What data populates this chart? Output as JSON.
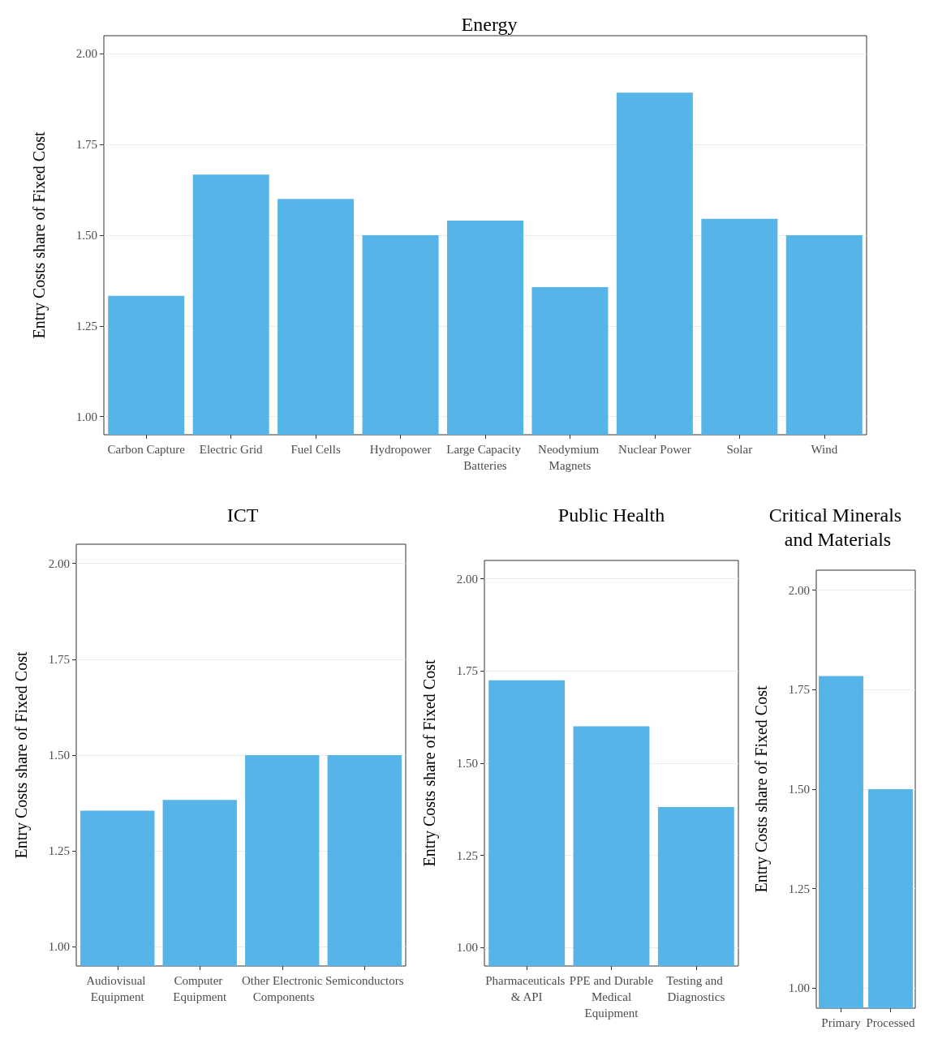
{
  "chart_data": [
    {
      "type": "bar",
      "title": "Energy",
      "ylabel": "Entry Costs share of Fixed Cost",
      "categories": [
        "Carbon Capture",
        "Electric Grid",
        "Fuel Cells",
        "Hydropower",
        "Large Capacity Batteries",
        "Neodymium Magnets",
        "Nuclear Power",
        "Solar",
        "Wind"
      ],
      "values": [
        1.333,
        1.667,
        1.6,
        1.5,
        1.54,
        1.357,
        1.893,
        1.545,
        1.5
      ],
      "color": "#56b4e9",
      "ylim": [
        0.95,
        2.05
      ],
      "yticks": [
        {
          "value": 1,
          "label": "1.00"
        },
        {
          "value": 1.25,
          "label": "1.25"
        },
        {
          "value": 1.5,
          "label": "1.50"
        },
        {
          "value": 1.75,
          "label": "1.75"
        },
        {
          "value": 2,
          "label": "2.00"
        }
      ],
      "grid": "y"
    },
    {
      "type": "bar",
      "title": "ICT",
      "ylabel": "Entry Costs share of Fixed Cost",
      "categories": [
        "Audiovisual Equipment",
        "Computer Equipment",
        "Other Electronic Components",
        "Semiconductors"
      ],
      "values": [
        1.355,
        1.383,
        1.5,
        1.5
      ],
      "color": "#56b4e9",
      "ylim": [
        0.95,
        2.05
      ],
      "yticks": [
        {
          "value": 1,
          "label": "1.00"
        },
        {
          "value": 1.25,
          "label": "1.25"
        },
        {
          "value": 1.5,
          "label": "1.50"
        },
        {
          "value": 1.75,
          "label": "1.75"
        },
        {
          "value": 2,
          "label": "2.00"
        }
      ],
      "grid": "y"
    },
    {
      "type": "bar",
      "title": "Public Health",
      "ylabel": "Entry Costs share of Fixed Cost",
      "categories": [
        "Pharmaceuticals & API",
        "PPE and Durable Medical Equipment",
        "Testing and Diagnostics"
      ],
      "values": [
        1.725,
        1.6,
        1.381
      ],
      "color": "#56b4e9",
      "ylim": [
        0.95,
        2.05
      ],
      "yticks": [
        {
          "value": 1,
          "label": "1.00"
        },
        {
          "value": 1.25,
          "label": "1.25"
        },
        {
          "value": 1.5,
          "label": "1.50"
        },
        {
          "value": 1.75,
          "label": "1.75"
        },
        {
          "value": 2,
          "label": "2.00"
        }
      ],
      "grid": "y"
    },
    {
      "type": "bar",
      "title": "Critical Minerals and Materials",
      "ylabel": "Entry Costs share of Fixed Cost",
      "categories": [
        "Primary",
        "Processed"
      ],
      "values": [
        1.784,
        1.5
      ],
      "color": "#56b4e9",
      "ylim": [
        0.95,
        2.05
      ],
      "yticks": [
        {
          "value": 1,
          "label": "1.00"
        },
        {
          "value": 1.25,
          "label": "1.25"
        },
        {
          "value": 1.5,
          "label": "1.50"
        },
        {
          "value": 1.75,
          "label": "1.75"
        },
        {
          "value": 2,
          "label": "2.00"
        }
      ],
      "grid": "y"
    }
  ]
}
